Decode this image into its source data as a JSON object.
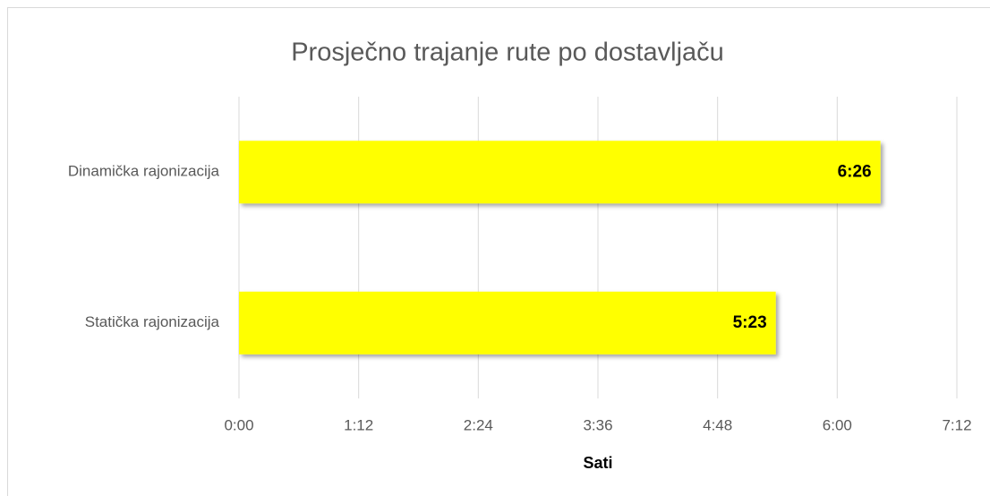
{
  "chart_data": {
    "type": "hbar",
    "title": "Prosječno trajanje rute po dostavljaču",
    "x_label": "Sati",
    "categories": [
      "Dinamička rajonizacija",
      "Statička rajonizacija"
    ],
    "values": [
      386,
      323
    ],
    "value_labels": [
      "6:26",
      "5:23"
    ],
    "color": "#ffff00",
    "xlim": [
      0,
      432
    ],
    "xticks": [
      {
        "value": 0,
        "label": "0:00"
      },
      {
        "value": 72,
        "label": "1:12"
      },
      {
        "value": 144,
        "label": "2:24"
      },
      {
        "value": 216,
        "label": "3:36"
      },
      {
        "value": 288,
        "label": "4:48"
      },
      {
        "value": 360,
        "label": "6:00"
      },
      {
        "value": 432,
        "label": "7:12"
      }
    ],
    "grid": true
  }
}
